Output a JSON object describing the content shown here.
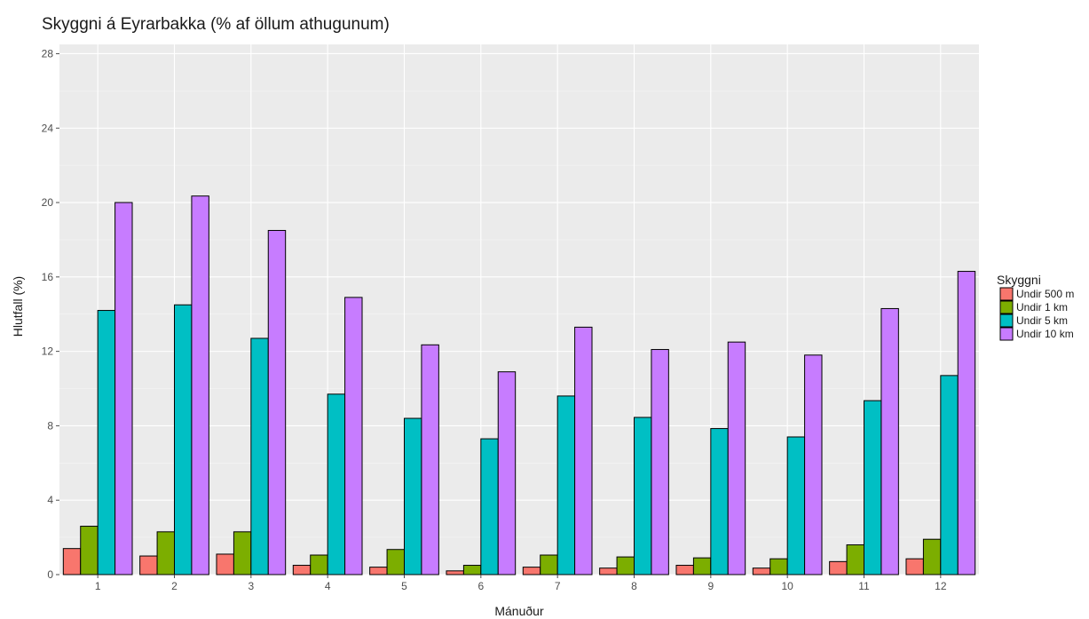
{
  "chart_data": {
    "type": "bar",
    "title": "Skyggni á Eyrarbakka (% af öllum athugunum)",
    "xlabel": "Mánuður",
    "ylabel": "Hlutfall (%)",
    "categories": [
      "1",
      "2",
      "3",
      "4",
      "5",
      "6",
      "7",
      "8",
      "9",
      "10",
      "11",
      "12"
    ],
    "yticks": [
      "0",
      "4",
      "8",
      "12",
      "16",
      "20",
      "24",
      "28"
    ],
    "ylim": [
      0,
      28.5
    ],
    "grid": true,
    "legend": {
      "title": "Skyggni",
      "position": "right"
    },
    "series": [
      {
        "name": "Undir 500 m",
        "color": "#f8766d",
        "values": [
          1.4,
          1.0,
          1.1,
          0.5,
          0.4,
          0.2,
          0.4,
          0.35,
          0.5,
          0.35,
          0.7,
          0.85
        ]
      },
      {
        "name": "Undir 1 km",
        "color": "#7cae00",
        "values": [
          2.6,
          2.3,
          2.3,
          1.05,
          1.35,
          0.5,
          1.05,
          0.95,
          0.9,
          0.85,
          1.6,
          1.9
        ]
      },
      {
        "name": "Undir 5 km",
        "color": "#00bfc4",
        "values": [
          14.2,
          14.5,
          12.7,
          9.7,
          8.4,
          7.3,
          9.6,
          8.45,
          7.85,
          7.4,
          9.35,
          10.7
        ]
      },
      {
        "name": "Undir 10 km",
        "color": "#c77cff",
        "values": [
          20.0,
          20.35,
          18.5,
          14.9,
          12.35,
          10.9,
          13.3,
          12.1,
          12.5,
          11.8,
          14.3,
          16.3
        ]
      }
    ]
  }
}
